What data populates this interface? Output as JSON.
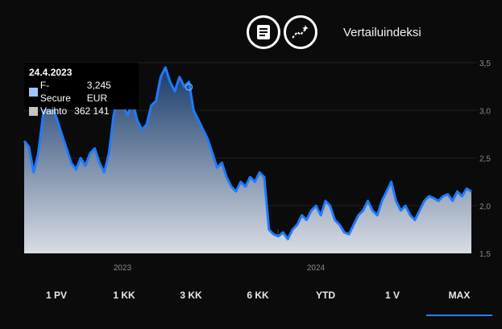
{
  "header": {
    "compare_label": "Vertailuindeksi",
    "report_icon": "document-icon",
    "compare_icon": "trend-line-icon"
  },
  "tooltip": {
    "date": "24.4.2023",
    "series_name": "F-Secure",
    "series_value": "3,245 EUR",
    "volume_name": "Vaihto",
    "volume_value": "362 141",
    "series_color": "#9ec5ff",
    "volume_color": "#c4c4c4"
  },
  "chart_data": {
    "type": "area",
    "y_ticks": [
      "3,5",
      "3,0",
      "2,5",
      "2,0",
      "1,5"
    ],
    "x_ticks": [
      "2023",
      "2024"
    ],
    "ylim": [
      1.5,
      3.5
    ],
    "series": [
      {
        "name": "F-Secure",
        "values": [
          2.68,
          2.62,
          2.35,
          2.55,
          2.95,
          3.1,
          3.05,
          2.9,
          2.75,
          2.6,
          2.45,
          2.38,
          2.5,
          2.42,
          2.55,
          2.6,
          2.45,
          2.35,
          2.55,
          2.95,
          3.15,
          3.05,
          2.95,
          3.1,
          2.9,
          2.8,
          2.85,
          3.05,
          3.1,
          3.35,
          3.45,
          3.3,
          3.2,
          3.35,
          3.25,
          3.3,
          3.0,
          2.9,
          2.8,
          2.7,
          2.55,
          2.4,
          2.45,
          2.3,
          2.2,
          2.15,
          2.25,
          2.2,
          2.3,
          2.25,
          2.35,
          2.3,
          1.75,
          1.7,
          1.68,
          1.72,
          1.65,
          1.75,
          1.8,
          1.9,
          1.85,
          1.95,
          2.0,
          1.9,
          2.05,
          2.0,
          1.85,
          1.8,
          1.72,
          1.7,
          1.8,
          1.9,
          1.95,
          2.05,
          1.95,
          1.9,
          2.05,
          2.15,
          2.25,
          2.05,
          1.95,
          2.0,
          1.9,
          1.85,
          1.95,
          2.05,
          2.1,
          2.08,
          2.05,
          2.1,
          2.12,
          2.05,
          2.15,
          2.1,
          2.18,
          2.15
        ],
        "color": "#1e7bff"
      },
      {
        "name": "Vaihto",
        "color": "#7a7a7a"
      }
    ],
    "highlight": {
      "date": "24.4.2023",
      "value": 3.245
    }
  },
  "tabs": [
    {
      "label": "1 PV"
    },
    {
      "label": "1 KK"
    },
    {
      "label": "3 KK"
    },
    {
      "label": "6 KK"
    },
    {
      "label": "YTD"
    },
    {
      "label": "1 V"
    },
    {
      "label": "MAX",
      "active": true
    }
  ],
  "colors": {
    "background": "#0b0b0b",
    "line": "#1e7bff",
    "area_top": "#173a6a",
    "area_bottom": "#d9dde5",
    "active_tab": "#2a7cff"
  }
}
